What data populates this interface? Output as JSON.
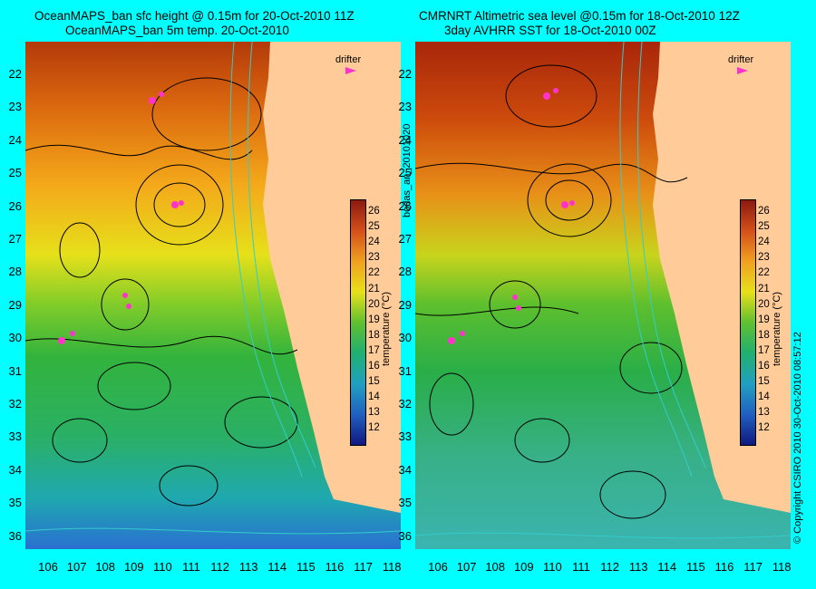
{
  "left_panel": {
    "title_line1": "OceanMAPS_ban sfc height @ 0.15m for 20-Oct-2010 11Z",
    "title_line2": "OceanMAPS_ban 5m temp. 20-Oct-2010"
  },
  "right_panel": {
    "title_line1": "CMRNRT Altimetric sea level  @0.15m  for 18-Oct-2010 12Z",
    "title_line2": "3day AVHRR SST for 18-Oct-2010 00Z"
  },
  "legend": {
    "drifter_label": "drifter",
    "drifter_color": "#ff33cc"
  },
  "colorbar": {
    "title": "temperature (°C)",
    "ticks": [
      "26",
      "25",
      "24",
      "23",
      "22",
      "21",
      "20",
      "19",
      "18",
      "17",
      "16",
      "15",
      "14",
      "13",
      "12"
    ],
    "min": 11.5,
    "max": 26.5
  },
  "axes": {
    "latitudes": [
      "22",
      "23",
      "24",
      "25",
      "26",
      "27",
      "28",
      "29",
      "30",
      "31",
      "32",
      "33",
      "34",
      "35",
      "36"
    ],
    "longitudes": [
      "106",
      "107",
      "108",
      "109",
      "110",
      "111",
      "112",
      "113",
      "114",
      "115",
      "116",
      "117",
      "118"
    ]
  },
  "middle_vertical_label": "bodas_an_20101020",
  "right_vertical_label": "© Copyright CSIRO 2010   30-Oct-2010 08:57:12",
  "colors": {
    "background": "#00ffff",
    "land": "#ffcc99",
    "contour": "#000000",
    "bathymetry": "#33cccc"
  }
}
